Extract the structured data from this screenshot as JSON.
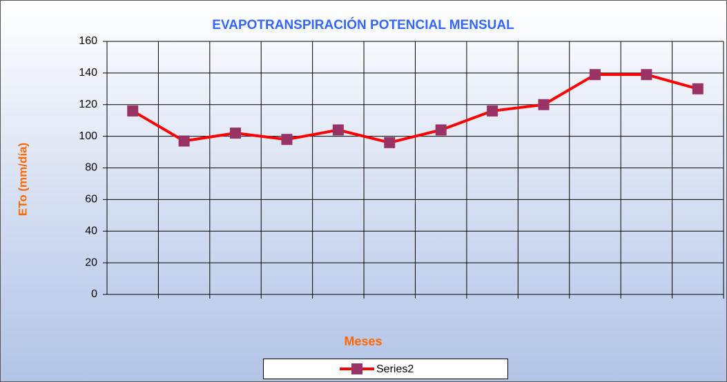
{
  "chart_data": {
    "type": "line",
    "title": "EVAPOTRANSPIRACIÓN  POTENCIAL MENSUAL",
    "ylabel": "ETo (mm/día)",
    "xlabel": "Meses",
    "categories": [
      null,
      null,
      null,
      null,
      null,
      null,
      null,
      null,
      null,
      null,
      null,
      null
    ],
    "series": [
      {
        "name": "Series2",
        "color": "#ff0000",
        "marker_color": "#993366",
        "values": [
          116,
          97,
          102,
          98,
          104,
          96,
          104,
          116,
          120,
          139,
          139,
          130
        ]
      }
    ],
    "ylim": [
      0,
      160
    ],
    "yticks": [
      0,
      20,
      40,
      60,
      80,
      100,
      120,
      140,
      160
    ],
    "grid": true,
    "legend": "bottom"
  }
}
